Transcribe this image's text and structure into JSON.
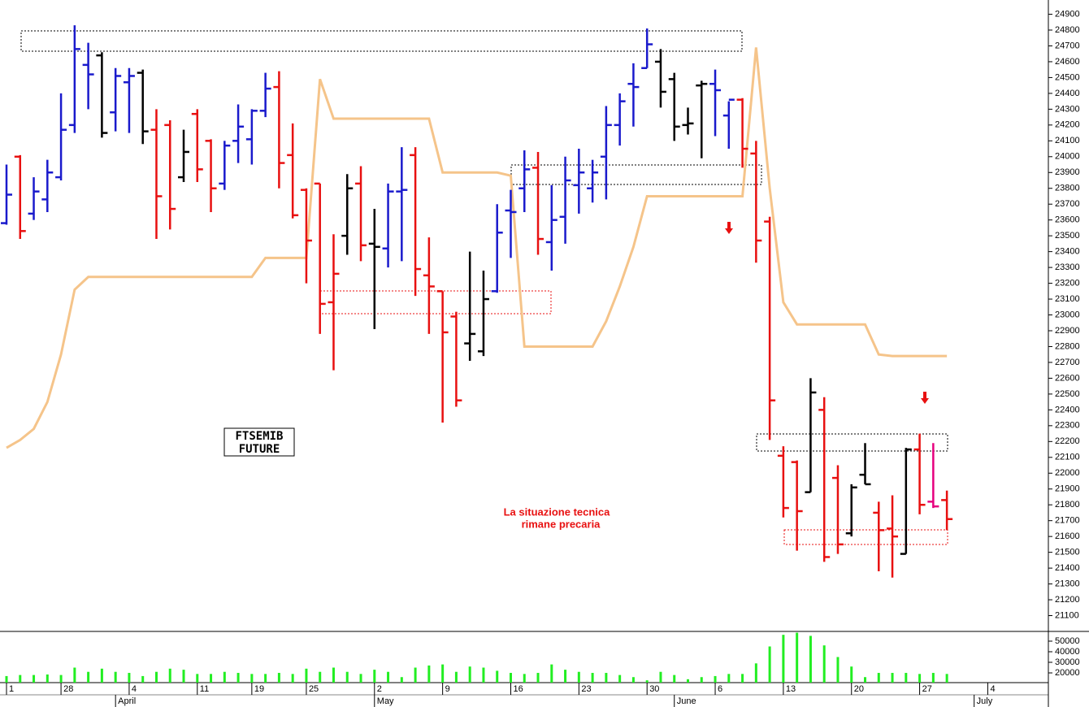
{
  "chart_data": {
    "type": "ohlc",
    "categories": [
      "1",
      null,
      null,
      null,
      "28",
      null,
      null,
      null,
      null,
      "4",
      null,
      null,
      null,
      null,
      "11",
      null,
      null,
      null,
      "19",
      null,
      null,
      null,
      "25",
      null,
      null,
      null,
      null,
      "2",
      null,
      null,
      null,
      null,
      "9",
      null,
      null,
      null,
      null,
      "16",
      null,
      null,
      null,
      null,
      "23",
      null,
      null,
      null,
      null,
      "30",
      null,
      null,
      null,
      null,
      "6",
      null,
      null,
      null,
      null,
      "13",
      null,
      null,
      null,
      null,
      "20",
      null,
      null,
      null,
      null,
      "27",
      null,
      null,
      null,
      null,
      "4",
      null
    ],
    "months": [
      null,
      null,
      null,
      null,
      null,
      null,
      null,
      null,
      "April",
      null,
      null,
      null,
      null,
      null,
      null,
      null,
      null,
      null,
      null,
      null,
      null,
      null,
      null,
      null,
      null,
      null,
      null,
      "May",
      null,
      null,
      null,
      null,
      null,
      null,
      null,
      null,
      null,
      null,
      null,
      null,
      null,
      null,
      null,
      null,
      null,
      null,
      null,
      null,
      null,
      "June",
      null,
      null,
      null,
      null,
      null,
      null,
      null,
      null,
      null,
      null,
      null,
      null,
      null,
      null,
      null,
      null,
      null,
      null,
      null,
      null,
      null,
      "July",
      null,
      null
    ],
    "open": [
      23580,
      24000,
      23640,
      23730,
      23870,
      24200,
      24580,
      24640,
      24280,
      24470,
      24530,
      24170,
      24200,
      23870,
      24270,
      24100,
      23830,
      24100,
      24110,
      24290,
      24440,
      24010,
      23790,
      23830,
      23080,
      23500,
      23830,
      23450,
      23420,
      23780,
      24010,
      23250,
      23150,
      22990,
      22820,
      22770,
      23150,
      23660,
      23800,
      23930,
      23460,
      23620,
      23820,
      23800,
      24000,
      24200,
      24460,
      24560,
      24600,
      24490,
      24200,
      24450,
      24460,
      24260,
      24360,
      24020,
      23590,
      22110,
      22070,
      21880,
      22400,
      21970,
      21620,
      21990,
      21750,
      21650,
      21490,
      22150,
      21820,
      21830,
      null,
      null,
      null,
      null
    ],
    "high": [
      23950,
      24010,
      23870,
      23980,
      24400,
      24830,
      24720,
      24660,
      24560,
      24560,
      24550,
      24300,
      24230,
      24170,
      24300,
      24110,
      24100,
      24330,
      24300,
      24530,
      24540,
      24210,
      23800,
      23830,
      23510,
      23890,
      23940,
      23670,
      23830,
      24060,
      24060,
      23490,
      23150,
      23020,
      23400,
      23280,
      23700,
      23790,
      24040,
      24030,
      23820,
      24000,
      24050,
      23980,
      24320,
      24400,
      24590,
      24810,
      24680,
      24530,
      24310,
      24480,
      24550,
      24350,
      24370,
      24100,
      23620,
      22170,
      22080,
      22600,
      22480,
      22050,
      21930,
      22190,
      21820,
      21860,
      22160,
      22250,
      22190,
      21890,
      null,
      null,
      null,
      null
    ],
    "low": [
      23570,
      23480,
      23600,
      23650,
      23850,
      24150,
      24300,
      24120,
      24160,
      24150,
      24080,
      23480,
      23540,
      23840,
      23840,
      23650,
      23790,
      23960,
      23950,
      24250,
      23800,
      23610,
      23200,
      22880,
      22650,
      23380,
      23340,
      22910,
      23300,
      23340,
      23120,
      22880,
      22320,
      22420,
      22710,
      22740,
      23140,
      23360,
      23650,
      23380,
      23280,
      23450,
      23640,
      23710,
      23730,
      24070,
      24190,
      24560,
      24310,
      24100,
      24140,
      23990,
      24130,
      24050,
      23930,
      23330,
      22210,
      21720,
      21510,
      21880,
      21440,
      21490,
      21600,
      21930,
      21380,
      21340,
      21490,
      21740,
      21780,
      21640,
      null,
      null,
      null,
      null
    ],
    "close": [
      23760,
      23530,
      23780,
      23900,
      24170,
      24680,
      24520,
      24150,
      24510,
      24510,
      24160,
      23750,
      23670,
      24030,
      23920,
      23800,
      24070,
      24190,
      24290,
      24430,
      23960,
      23630,
      23470,
      23070,
      23260,
      23800,
      23440,
      23430,
      23780,
      23790,
      23290,
      23180,
      22890,
      22460,
      22880,
      23100,
      23520,
      23650,
      23920,
      23480,
      23600,
      23850,
      23900,
      23900,
      24200,
      24350,
      24440,
      24710,
      24410,
      24190,
      24210,
      24460,
      24420,
      24360,
      24050,
      23470,
      22460,
      21780,
      21760,
      22510,
      21470,
      21550,
      21910,
      21930,
      21640,
      21600,
      22150,
      21800,
      21790,
      21710,
      null,
      null,
      null,
      null
    ],
    "colors": [
      "#1a1acc",
      "#e81010",
      "#1a1acc",
      "#1a1acc",
      "#1a1acc",
      "#1a1acc",
      "#1a1acc",
      "#000000",
      "#1a1acc",
      "#1a1acc",
      "#000000",
      "#e81010",
      "#e81010",
      "#000000",
      "#e81010",
      "#e81010",
      "#1a1acc",
      "#1a1acc",
      "#1a1acc",
      "#1a1acc",
      "#e81010",
      "#e81010",
      "#e81010",
      "#e81010",
      "#e81010",
      "#000000",
      "#e81010",
      "#000000",
      "#1a1acc",
      "#1a1acc",
      "#e81010",
      "#e81010",
      "#e81010",
      "#e81010",
      "#000000",
      "#000000",
      "#1a1acc",
      "#1a1acc",
      "#1a1acc",
      "#e81010",
      "#1a1acc",
      "#1a1acc",
      "#1a1acc",
      "#1a1acc",
      "#1a1acc",
      "#1a1acc",
      "#1a1acc",
      "#1a1acc",
      "#000000",
      "#000000",
      "#000000",
      "#000000",
      "#1a1acc",
      "#1a1acc",
      "#e81010",
      "#e81010",
      "#e81010",
      "#e81010",
      "#e81010",
      "#000000",
      "#e81010",
      "#e81010",
      "#000000",
      "#000000",
      "#e81010",
      "#e81010",
      "#000000",
      "#e81010",
      "#e6007e",
      "#e81010",
      null,
      null,
      null,
      null
    ],
    "line_values": [
      22160,
      22210,
      22280,
      22450,
      22750,
      23160,
      23240,
      23240,
      23240,
      23240,
      23240,
      23240,
      23240,
      23240,
      23240,
      23240,
      23240,
      23240,
      23240,
      23360,
      23360,
      23360,
      23360,
      24490,
      24240,
      24240,
      24240,
      24240,
      24240,
      24240,
      24240,
      24240,
      23900,
      23900,
      23900,
      23900,
      23900,
      23880,
      22800,
      22800,
      22800,
      22800,
      22800,
      22800,
      22960,
      23180,
      23430,
      23750,
      23750,
      23750,
      23750,
      23750,
      23750,
      23750,
      23750,
      24690,
      23800,
      23080,
      22940,
      22940,
      22940,
      22940,
      22940,
      22940,
      22750,
      22740,
      22740,
      22740,
      22740,
      22740,
      null,
      null,
      null,
      null
    ],
    "line_color": "#f5c48a",
    "ylim": [
      21000,
      24990
    ],
    "yticks": [
      21100,
      21200,
      21300,
      21400,
      21500,
      21600,
      21700,
      21800,
      21900,
      22000,
      22100,
      22200,
      22300,
      22400,
      22500,
      22600,
      22700,
      22800,
      22900,
      23000,
      23100,
      23200,
      23300,
      23400,
      23500,
      23600,
      23700,
      23800,
      23900,
      24000,
      24100,
      24200,
      24300,
      24400,
      24500,
      24600,
      24700,
      24800,
      24900
    ],
    "volume": [
      17000,
      18000,
      18000,
      18500,
      18000,
      25000,
      21000,
      24000,
      21000,
      20000,
      17000,
      21000,
      24000,
      23000,
      19000,
      19000,
      21000,
      20000,
      19000,
      19000,
      20000,
      19000,
      24000,
      21000,
      25000,
      21000,
      19000,
      23000,
      21000,
      16000,
      25000,
      27000,
      28000,
      21000,
      26000,
      25000,
      22000,
      20000,
      19000,
      20000,
      28000,
      23000,
      21000,
      20000,
      20000,
      18000,
      16000,
      13000,
      21000,
      18000,
      14000,
      16000,
      17000,
      19000,
      19000,
      29000,
      45000,
      56000,
      58000,
      55000,
      46000,
      35000,
      26000,
      16000,
      20000,
      20000,
      20000,
      19000,
      20000,
      19000,
      null,
      null,
      null,
      null
    ],
    "volume_color": "#22ee22",
    "volume_ylim": [
      10800,
      59200
    ],
    "volume_yticks": [
      20000,
      30000,
      40000,
      50000
    ],
    "box_label": [
      "FTSEMIB",
      "FUTURE"
    ],
    "note": [
      "La situazione tecnica",
      "rimane precaria"
    ]
  }
}
